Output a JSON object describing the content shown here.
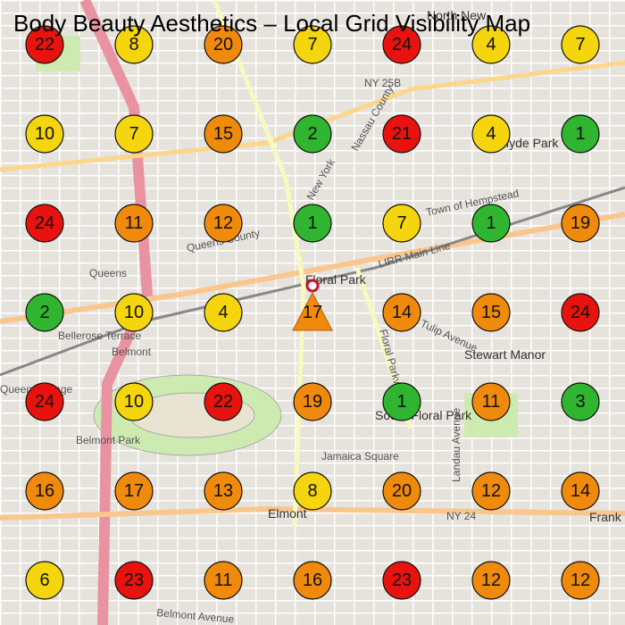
{
  "title": "Body Beauty Aesthetics – Local Grid Visibility Map",
  "grid": {
    "rows": [
      [
        22,
        8,
        20,
        7,
        24,
        4,
        7
      ],
      [
        10,
        7,
        15,
        2,
        21,
        4,
        1
      ],
      [
        24,
        11,
        12,
        1,
        7,
        1,
        19
      ],
      [
        2,
        10,
        4,
        null,
        14,
        15,
        24
      ],
      [
        24,
        10,
        22,
        19,
        1,
        11,
        3
      ],
      [
        16,
        17,
        13,
        8,
        20,
        12,
        14
      ],
      [
        6,
        23,
        11,
        16,
        23,
        12,
        12
      ]
    ]
  },
  "target": {
    "rank": 17
  },
  "map_labels": [
    "North New",
    "NY 25B",
    "Hyde Park",
    "Nassau County",
    "Town of Hempstead",
    "Queens County",
    "Queens",
    "Floral Park",
    "LIRR Main Line",
    "Bellerose Terrace",
    "Belmont",
    "Belmont Park",
    "Tulip Avenue",
    "Stewart Manor",
    "South Floral Park",
    "Jamaica Square",
    "Elmont",
    "NY 24",
    "Frank",
    "Belmont Avenue",
    "Landau Avenue",
    "Floral Parkway",
    "New York",
    "Queens Village"
  ]
}
